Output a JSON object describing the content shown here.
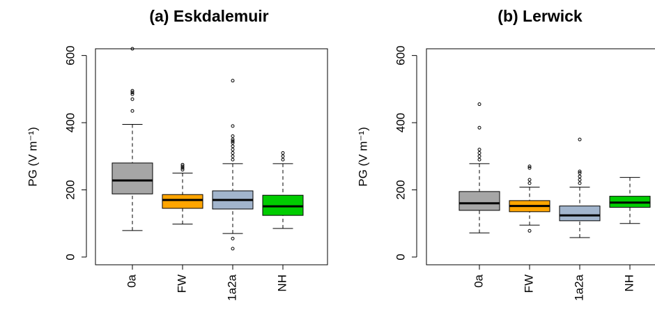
{
  "chart_data": [
    {
      "type": "box",
      "title": "(a) Eskdalemuir",
      "ylabel": "PG (V m⁻¹)",
      "categories": [
        "0a",
        "FW",
        "1a2a",
        "NH"
      ],
      "colors": [
        "#a6a6a6",
        "#ffa500",
        "#a2b5cd",
        "#00cc00"
      ],
      "ylim": [
        -23,
        620
      ],
      "yticks": [
        0,
        200,
        400,
        600
      ],
      "series": [
        {
          "low": 79,
          "q1": 188,
          "median": 228,
          "q3": 280,
          "high": 395,
          "outliers": [
            435,
            470,
            485,
            490,
            495,
            620
          ]
        },
        {
          "low": 98,
          "q1": 145,
          "median": 170,
          "q3": 186,
          "high": 250,
          "outliers": [
            260,
            265,
            270,
            275
          ]
        },
        {
          "low": 70,
          "q1": 143,
          "median": 170,
          "q3": 197,
          "high": 278,
          "outliers": [
            290,
            300,
            310,
            320,
            330,
            340,
            345,
            350,
            360,
            390,
            525,
            55,
            25
          ]
        },
        {
          "low": 85,
          "q1": 124,
          "median": 151,
          "q3": 184,
          "high": 278,
          "outliers": [
            290,
            300,
            310
          ]
        }
      ]
    },
    {
      "type": "box",
      "title": "(b) Lerwick",
      "ylabel": "PG (V m⁻¹)",
      "categories": [
        "0a",
        "FW",
        "1a2a",
        "NH"
      ],
      "colors": [
        "#a6a6a6",
        "#ffa500",
        "#a2b5cd",
        "#00cc00"
      ],
      "ylim": [
        -23,
        620
      ],
      "yticks": [
        0,
        200,
        400,
        600
      ],
      "series": [
        {
          "low": 72,
          "q1": 139,
          "median": 160,
          "q3": 195,
          "high": 278,
          "outliers": [
            290,
            300,
            310,
            320,
            385,
            455
          ]
        },
        {
          "low": 95,
          "q1": 135,
          "median": 152,
          "q3": 168,
          "high": 208,
          "outliers": [
            220,
            230,
            265,
            270,
            78
          ]
        },
        {
          "low": 58,
          "q1": 108,
          "median": 124,
          "q3": 152,
          "high": 208,
          "outliers": [
            220,
            230,
            240,
            250,
            255,
            350
          ]
        },
        {
          "low": 100,
          "q1": 148,
          "median": 162,
          "q3": 181,
          "high": 237,
          "outliers": []
        }
      ]
    }
  ]
}
